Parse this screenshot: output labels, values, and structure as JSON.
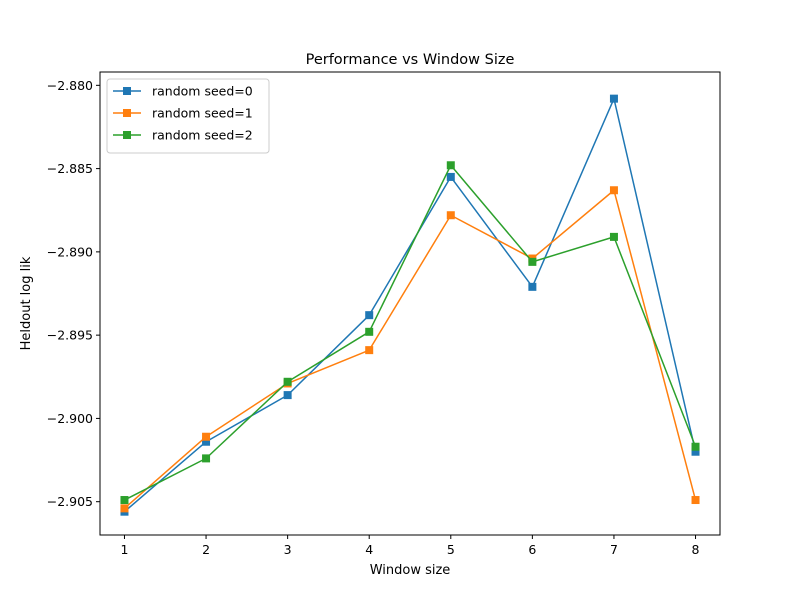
{
  "chart_data": {
    "type": "line",
    "title": "Performance vs Window Size",
    "xlabel": "Window size",
    "ylabel": "Heldout log lik",
    "x": [
      1,
      2,
      3,
      4,
      5,
      6,
      7,
      8
    ],
    "x_ticks": [
      "1",
      "2",
      "3",
      "4",
      "5",
      "6",
      "7",
      "8"
    ],
    "xlim": [
      0.7,
      8.3
    ],
    "y_ticks": [
      -2.905,
      -2.9,
      -2.895,
      -2.89,
      -2.885,
      -2.88
    ],
    "y_tick_labels": [
      "−2.905",
      "−2.900",
      "−2.895",
      "−2.890",
      "−2.885",
      "−2.880"
    ],
    "ylim": [
      -2.907,
      -2.8792
    ],
    "grid": false,
    "legend_position": "top-left",
    "marker": "square",
    "series": [
      {
        "name": "random seed=0",
        "color": "#1f77b4",
        "values": [
          -2.9056,
          -2.9014,
          -2.8986,
          -2.8938,
          -2.8855,
          -2.8921,
          -2.8808,
          -2.902
        ]
      },
      {
        "name": "random seed=1",
        "color": "#ff7f0e",
        "values": [
          -2.9054,
          -2.9011,
          -2.8979,
          -2.8959,
          -2.8878,
          -2.8904,
          -2.8863,
          -2.9049
        ]
      },
      {
        "name": "random seed=2",
        "color": "#2ca02c",
        "values": [
          -2.9049,
          -2.9024,
          -2.8978,
          -2.8948,
          -2.8848,
          -2.8906,
          -2.8891,
          -2.9017
        ]
      }
    ]
  }
}
